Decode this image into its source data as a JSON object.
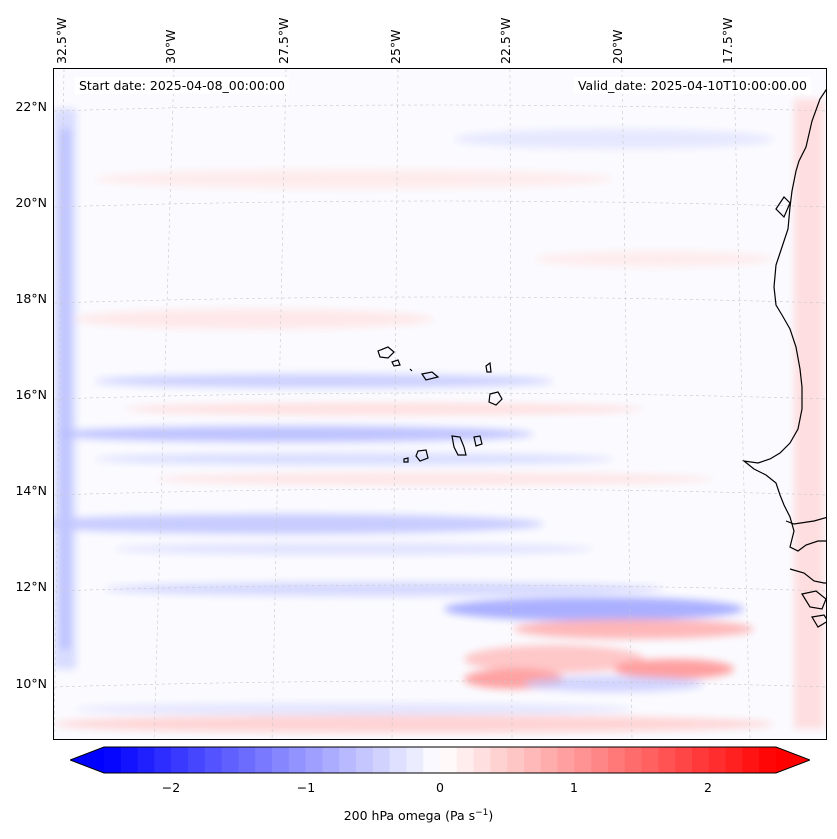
{
  "map": {
    "start_date": "Start date: 2025-04-08_00:00:00",
    "valid_date": "Valid_date: 2025-04-10T10:00:00.00",
    "lon_labels": [
      "32.5°W",
      "30°W",
      "27.5°W",
      "25°W",
      "22.5°W",
      "20°W",
      "17.5°W"
    ],
    "lat_labels": [
      "22°N",
      "20°N",
      "18°N",
      "16°N",
      "14°N",
      "12°N",
      "10°N"
    ],
    "islands": "Cape Verde islands",
    "coastline": "West African coastline (Mauritania, Senegal, Gambia, Guinea-Bissau)"
  },
  "colorbar": {
    "label_prefix": "200 hPa omega (Pa s",
    "label_sup": "−1",
    "label_suffix": ")",
    "ticks": [
      "−2",
      "−1",
      "0",
      "1",
      "2"
    ],
    "range": [
      -2.7,
      2.7
    ],
    "neg_color": "#0000ff",
    "pos_color": "#ff0000",
    "mid_color": "#ffffff"
  }
}
